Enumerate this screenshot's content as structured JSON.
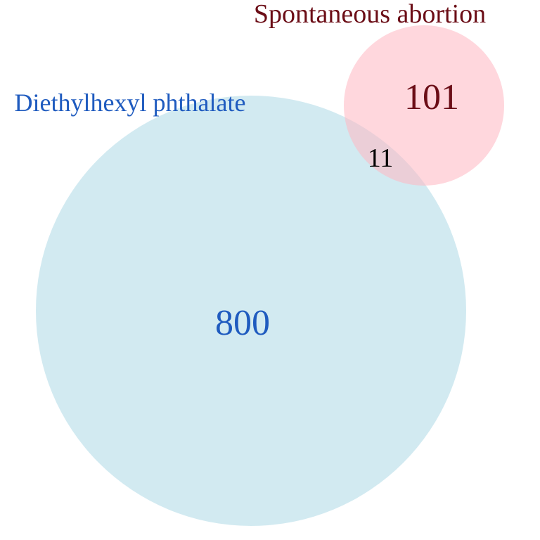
{
  "venn": {
    "sets": [
      {
        "name": "Diethylhexyl phthalate",
        "only_count": "800",
        "fill_color": "#add8e6",
        "text_color": "#1f5bbf"
      },
      {
        "name": "Spontaneous abortion",
        "only_count": "101",
        "fill_color": "#ffb6c1",
        "text_color": "#6b0d16"
      }
    ],
    "intersection": {
      "count": "11",
      "text_color": "#000000"
    }
  }
}
